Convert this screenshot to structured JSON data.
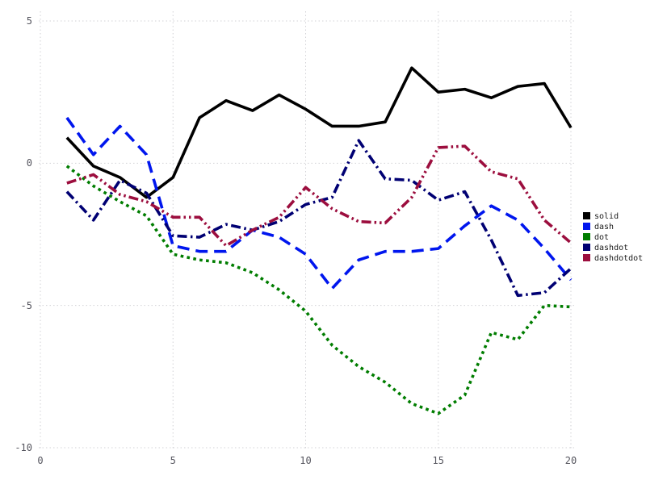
{
  "chart_data": {
    "type": "line",
    "title": "",
    "xlabel": "",
    "ylabel": "",
    "xlim": [
      0,
      20
    ],
    "ylim": [
      -10,
      5
    ],
    "xticks": [
      0,
      5,
      10,
      15,
      20
    ],
    "xtick_labels": [
      "0",
      "5",
      "10",
      "15",
      "20"
    ],
    "yticks": [
      5,
      0,
      -5,
      -10
    ],
    "ytick_labels": [
      "5",
      "0",
      "-5",
      "-10"
    ],
    "grid": true,
    "grid_style": "dotted",
    "legend_position": "right",
    "background_color": "#ffffff",
    "grid_color": "#d2d2d6",
    "tick_label_color": "#55555e",
    "x": [
      1,
      2,
      3,
      4,
      5,
      6,
      7,
      8,
      9,
      10,
      11,
      12,
      13,
      14,
      15,
      16,
      17,
      18,
      19,
      20
    ],
    "series": [
      {
        "name": "solid",
        "color": "#000000",
        "dash_style": "solid",
        "values": [
          0.9,
          -0.1,
          -0.5,
          -1.2,
          -0.5,
          1.6,
          2.2,
          1.85,
          2.4,
          1.9,
          1.3,
          1.3,
          1.45,
          3.35,
          2.5,
          2.6,
          2.3,
          2.7,
          2.8,
          1.25
        ]
      },
      {
        "name": "dash",
        "color": "#0016ee",
        "dash_style": "dash",
        "values": [
          1.6,
          0.3,
          1.3,
          0.3,
          -2.9,
          -3.1,
          -3.1,
          -2.35,
          -2.6,
          -3.2,
          -4.4,
          -3.4,
          -3.1,
          -3.1,
          -3.0,
          -2.2,
          -1.5,
          -2.0,
          -3.0,
          -4.1
        ]
      },
      {
        "name": "dot",
        "color": "#007d00",
        "dash_style": "dot",
        "values": [
          -0.1,
          -0.8,
          -1.35,
          -1.85,
          -3.2,
          -3.4,
          -3.5,
          -3.85,
          -4.45,
          -5.2,
          -6.4,
          -7.15,
          -7.7,
          -8.45,
          -8.8,
          -8.15,
          -5.95,
          -6.2,
          -5.0,
          -5.05
        ]
      },
      {
        "name": "dashdot",
        "color": "#000073",
        "dash_style": "dashdot",
        "values": [
          -1.0,
          -2.0,
          -0.6,
          -1.05,
          -2.55,
          -2.6,
          -2.15,
          -2.35,
          -2.05,
          -1.45,
          -1.2,
          0.8,
          -0.55,
          -0.6,
          -1.3,
          -1.0,
          -2.7,
          -4.65,
          -4.55,
          -3.7
        ]
      },
      {
        "name": "dashdotdot",
        "color": "#9c0e3e",
        "dash_style": "dashdotdot",
        "values": [
          -0.7,
          -0.4,
          -1.1,
          -1.35,
          -1.9,
          -1.9,
          -2.9,
          -2.35,
          -1.9,
          -0.85,
          -1.6,
          -2.05,
          -2.1,
          -1.2,
          0.55,
          0.6,
          -0.3,
          -0.55,
          -2.0,
          -2.8
        ]
      }
    ]
  }
}
